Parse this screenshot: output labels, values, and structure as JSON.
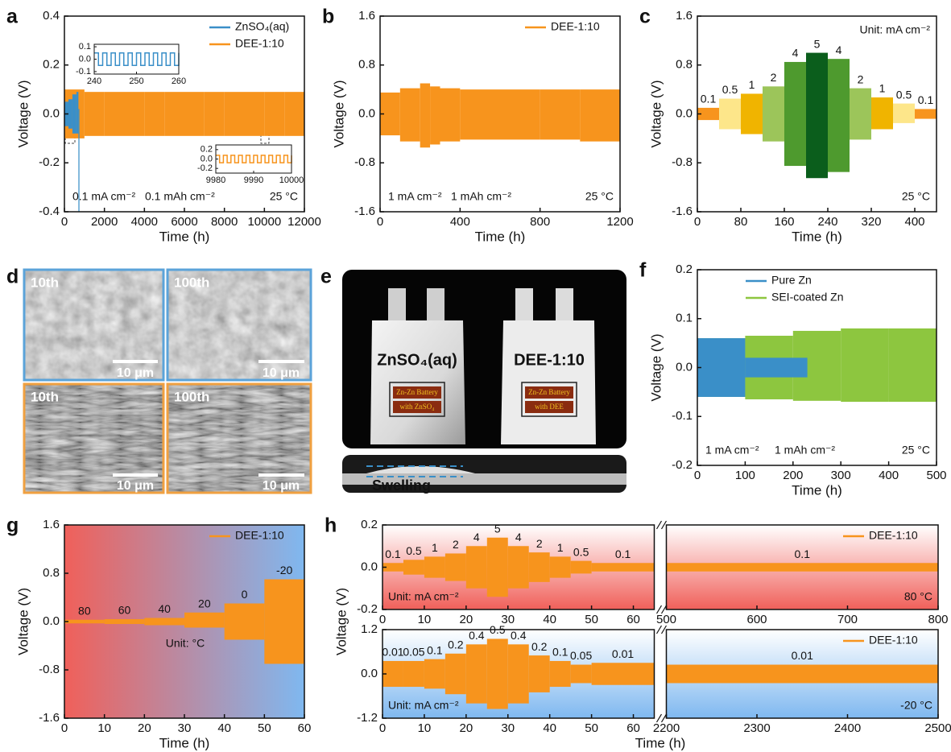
{
  "chart_data": [
    {
      "panel": "a",
      "type": "band",
      "xlabel": "Time (h)",
      "ylabel": "Voltage (V)",
      "xlim": [
        0,
        12000
      ],
      "xticks": [
        0,
        2000,
        4000,
        6000,
        8000,
        10000,
        12000
      ],
      "ylim": [
        -0.4,
        0.4
      ],
      "yticks": [
        -0.4,
        -0.2,
        {
          "value": 0,
          "label": "0.0"
        },
        0.2,
        0.4
      ],
      "legend": "upper right",
      "series": [
        {
          "name": "ZnSO₄(aq)",
          "color": "#3a8fc8",
          "bins": [
            0,
            200,
            400,
            600,
            700,
            750
          ],
          "high": [
            0.05,
            0.06,
            0.08,
            0.09,
            0.02
          ],
          "low": [
            -0.05,
            -0.06,
            -0.08,
            -0.08,
            -0.4
          ]
        },
        {
          "name": "DEE-1:10",
          "color": "#f7941d",
          "bins": [
            0,
            1000,
            2000,
            3000,
            4000,
            5000,
            6000,
            7000,
            8000,
            9000,
            10000,
            11000,
            12000
          ],
          "high": [
            0.1,
            0.09,
            0.09,
            0.09,
            0.09,
            0.09,
            0.09,
            0.09,
            0.09,
            0.09,
            0.09,
            0.09
          ],
          "low": [
            -0.1,
            -0.09,
            -0.09,
            -0.09,
            -0.09,
            -0.09,
            -0.09,
            -0.09,
            -0.09,
            -0.09,
            -0.09,
            -0.09
          ]
        }
      ],
      "insets": [
        {
          "xlim": [
            240,
            260
          ],
          "xticks": [
            240,
            250,
            260
          ],
          "ylim": [
            -0.12,
            0.12
          ],
          "yticks": [
            -0.1,
            {
              "value": 0,
              "label": "0.0"
            },
            0.1
          ],
          "color": "#3a8fc8",
          "high": 0.05,
          "low": -0.05,
          "period": 2
        },
        {
          "xlim": [
            9980,
            10000
          ],
          "xticks": [
            9980,
            9990,
            10000
          ],
          "ylim": [
            -0.3,
            0.3
          ],
          "yticks": [
            -0.2,
            {
              "value": 0,
              "label": "0.0"
            },
            0.2
          ],
          "color": "#f7941d",
          "high": 0.08,
          "low": -0.08,
          "period": 2
        }
      ],
      "annotations": [
        "0.1 mA cm⁻²",
        "0.1 mAh cm⁻²",
        "25 °C"
      ]
    },
    {
      "panel": "b",
      "type": "band",
      "xlabel": "Time (h)",
      "ylabel": "Voltage (V)",
      "xlim": [
        0,
        1200
      ],
      "xticks": [
        0,
        400,
        800,
        1200
      ],
      "ylim": [
        -1.6,
        1.6
      ],
      "yticks": [
        -1.6,
        -0.8,
        {
          "value": 0,
          "label": "0.0"
        },
        0.8,
        1.6
      ],
      "legend": "upper right",
      "series": [
        {
          "name": "DEE-1:10",
          "color": "#f7941d",
          "bins": [
            0,
            100,
            200,
            250,
            300,
            400,
            600,
            800,
            1000,
            1200
          ],
          "high": [
            0.35,
            0.42,
            0.5,
            0.45,
            0.42,
            0.4,
            0.4,
            0.4,
            0.4
          ],
          "low": [
            -0.35,
            -0.45,
            -0.55,
            -0.5,
            -0.45,
            -0.42,
            -0.42,
            -0.42,
            -0.45
          ]
        }
      ],
      "annotations": [
        "1 mA cm⁻²",
        "1 mAh cm⁻²",
        "25 °C"
      ]
    },
    {
      "panel": "c",
      "type": "band",
      "xlabel": "Time (h)",
      "ylabel": "Voltage (V)",
      "xlim": [
        0,
        440
      ],
      "xticks": [
        0,
        80,
        160,
        240,
        320,
        400
      ],
      "ylim": [
        -1.6,
        1.6
      ],
      "yticks": [
        -1.6,
        -0.8,
        {
          "value": 0,
          "label": "0.0"
        },
        0.8,
        1.6
      ],
      "series": [
        {
          "colors": [
            "#f7941d",
            "#fde68a",
            "#f0b400",
            "#9cc55a",
            "#4e9a2e",
            "#0b5e1c",
            "#4e9a2e",
            "#9cc55a",
            "#f0b400",
            "#fde68a",
            "#f7941d"
          ],
          "bins": [
            0,
            40,
            80,
            120,
            160,
            200,
            240,
            280,
            320,
            360,
            400,
            440
          ],
          "high": [
            0.1,
            0.25,
            0.33,
            0.45,
            0.85,
            1.0,
            0.9,
            0.42,
            0.27,
            0.17,
            0.08
          ],
          "low": [
            -0.1,
            -0.25,
            -0.33,
            -0.45,
            -0.85,
            -1.05,
            -0.95,
            -0.42,
            -0.25,
            -0.15,
            -0.08
          ],
          "labels": [
            0.1,
            0.5,
            1,
            2,
            4,
            5,
            4,
            2,
            1,
            0.5,
            0.1
          ]
        }
      ],
      "annotations": [
        "Unit: mA cm⁻²",
        "25 °C"
      ]
    },
    {
      "panel": "f",
      "type": "band",
      "xlabel": "Time (h)",
      "ylabel": "Voltage (V)",
      "xlim": [
        0,
        500
      ],
      "xticks": [
        0,
        100,
        200,
        300,
        400,
        500
      ],
      "ylim": [
        -0.2,
        0.2
      ],
      "yticks": [
        -0.2,
        -0.1,
        {
          "value": 0,
          "label": "0.0"
        },
        0.1,
        0.2
      ],
      "legend": "upper left",
      "series": [
        {
          "name": "Pure Zn",
          "color": "#3a8fc8",
          "bins": [
            0,
            100,
            230
          ],
          "high": [
            0.06,
            0.02
          ],
          "low": [
            -0.06,
            -0.02
          ]
        },
        {
          "name": "SEI-coated Zn",
          "color": "#8dc63f",
          "bins": [
            0,
            100,
            200,
            300,
            400,
            500
          ],
          "high": [
            0.06,
            0.065,
            0.075,
            0.08,
            0.08
          ],
          "low": [
            -0.06,
            -0.065,
            -0.068,
            -0.07,
            -0.07
          ]
        }
      ],
      "annotations": [
        "1 mA cm⁻²",
        "1 mAh cm⁻²",
        "25 °C"
      ]
    },
    {
      "panel": "g",
      "type": "band",
      "xlabel": "Time (h)",
      "ylabel": "Voltage (V)",
      "xlim": [
        0,
        60
      ],
      "xticks": [
        0,
        10,
        20,
        30,
        40,
        50,
        60
      ],
      "ylim": [
        -1.6,
        1.6
      ],
      "yticks": [
        -1.6,
        -0.8,
        {
          "value": 0,
          "label": "0.0"
        },
        0.8,
        1.6
      ],
      "legend": "upper right",
      "background": [
        "#f0605a",
        "#7fb8f0"
      ],
      "background_direction": "horizontal",
      "series": [
        {
          "name": "DEE-1:10",
          "color": "#f7941d",
          "bins": [
            0,
            10,
            20,
            30,
            40,
            50,
            60
          ],
          "high": [
            0.03,
            0.04,
            0.06,
            0.15,
            0.3,
            0.7
          ],
          "low": [
            -0.03,
            -0.04,
            -0.06,
            -0.1,
            -0.3,
            -0.7
          ],
          "labels": [
            80,
            60,
            40,
            20,
            0,
            -20
          ]
        }
      ],
      "annotations": [
        "Unit: °C"
      ]
    },
    {
      "panel": "h",
      "type": "band",
      "ylabel": "Voltage (V)",
      "x_segments": [
        {
          "xlim": [
            0,
            65
          ],
          "xticks": [
            0,
            10,
            20,
            30,
            40,
            50,
            60
          ]
        },
        {
          "xlim": [
            500,
            800
          ],
          "xticks": [
            500,
            600,
            700,
            800
          ]
        }
      ],
      "ylim": [
        -0.2,
        0.2
      ],
      "yticks": [
        -0.2,
        {
          "value": 0,
          "label": "0.0"
        },
        0.2
      ],
      "legend": "upper right",
      "background": [
        "#ffffff",
        "#f0605a"
      ],
      "background_direction": "vertical",
      "series": [
        {
          "name": "DEE-1:10",
          "color": "#f7941d",
          "segment": 0,
          "bins": [
            0,
            5,
            10,
            15,
            20,
            25,
            30,
            35,
            40,
            45,
            50,
            65
          ],
          "high": [
            0.02,
            0.035,
            0.05,
            0.065,
            0.1,
            0.14,
            0.1,
            0.07,
            0.05,
            0.03,
            0.02
          ],
          "low": [
            -0.02,
            -0.035,
            -0.05,
            -0.065,
            -0.1,
            -0.14,
            -0.1,
            -0.07,
            -0.05,
            -0.03,
            -0.02
          ],
          "labels": [
            0.1,
            0.5,
            1,
            2,
            4,
            5,
            4,
            2,
            1,
            0.5,
            0.1
          ]
        },
        {
          "color": "#f7941d",
          "segment": 1,
          "bins": [
            500,
            800
          ],
          "high": [
            0.02
          ],
          "low": [
            -0.02
          ],
          "labels": [
            0.1
          ]
        }
      ],
      "annotations": [
        "Unit: mA cm⁻²",
        "80 °C"
      ]
    },
    {
      "type": "band",
      "xlabel": "Time (h)",
      "x_segments": [
        {
          "xlim": [
            0,
            65
          ],
          "xticks": [
            0,
            10,
            20,
            30,
            40,
            50,
            60
          ]
        },
        {
          "xlim": [
            2200,
            2500
          ],
          "xticks": [
            2200,
            2300,
            2400,
            2500
          ]
        }
      ],
      "ylim": [
        -1.2,
        1.2
      ],
      "yticks": [
        -1.2,
        {
          "value": 0,
          "label": "0.0"
        },
        1.2
      ],
      "legend": "upper right",
      "background": [
        "#ffffff",
        "#7fb8f0"
      ],
      "background_direction": "vertical",
      "series": [
        {
          "name": "DEE-1:10",
          "color": "#f7941d",
          "segment": 0,
          "bins": [
            0,
            5,
            10,
            15,
            20,
            25,
            30,
            35,
            40,
            45,
            50,
            65
          ],
          "high": [
            0.35,
            0.35,
            0.4,
            0.55,
            0.8,
            0.95,
            0.8,
            0.5,
            0.35,
            0.25,
            0.3
          ],
          "low": [
            -0.35,
            -0.35,
            -0.4,
            -0.55,
            -0.8,
            -0.95,
            -0.8,
            -0.5,
            -0.35,
            -0.25,
            -0.3
          ],
          "labels": [
            0.01,
            0.05,
            0.1,
            0.2,
            0.4,
            0.5,
            0.4,
            0.2,
            0.1,
            0.05,
            0.01
          ]
        },
        {
          "color": "#f7941d",
          "segment": 1,
          "bins": [
            2200,
            2500
          ],
          "high": [
            0.25
          ],
          "low": [
            -0.25
          ],
          "labels": [
            0.01
          ]
        }
      ],
      "annotations": [
        "Unit: mA cm⁻²",
        "-20 °C"
      ]
    }
  ],
  "images": {
    "d": {
      "panel": "d",
      "tiles": [
        {
          "cycle": "10th",
          "scale": "10 μm"
        },
        {
          "cycle": "100th",
          "scale": "10 μm"
        },
        {
          "cycle": "10th",
          "scale": "10 μm"
        },
        {
          "cycle": "100th",
          "scale": "10 μm"
        }
      ]
    },
    "e": {
      "panel": "e",
      "pouches": [
        {
          "label": "ZnSO₄(aq)",
          "card": [
            "Zn-Zn Battery",
            "with ZnSO₄"
          ]
        },
        {
          "label": "DEE-1:10",
          "card": [
            "Zn-Zn Battery",
            "with DEE"
          ]
        }
      ],
      "caption": "Swelling"
    }
  }
}
